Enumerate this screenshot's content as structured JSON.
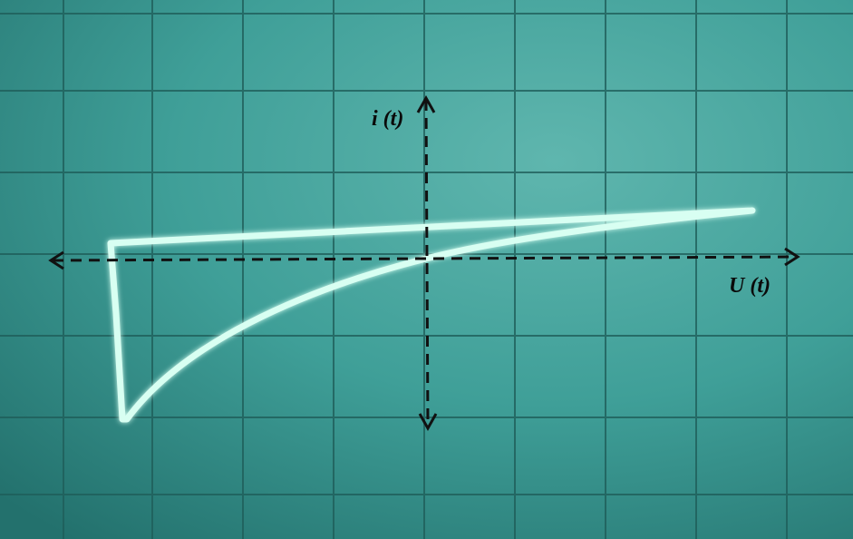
{
  "axes": {
    "y_label": "i (t)",
    "x_label": "U (t)"
  }
}
